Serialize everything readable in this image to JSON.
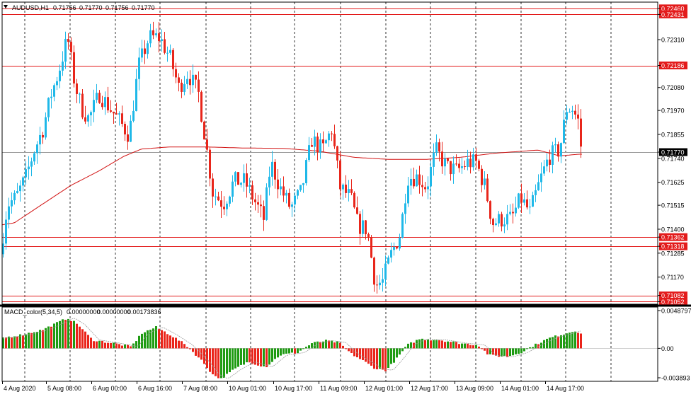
{
  "window": {
    "symbol_label": "AUDUSD,H1",
    "ohlc": [
      "0.71756",
      "0.71770",
      "0.71756",
      "0.71770"
    ]
  },
  "colors": {
    "bull": "#1fb8e8",
    "bear": "#e8261b",
    "ma": "#d21414",
    "level": "#e31b1b",
    "grid": "#000000",
    "macd_up": "#1e9b12",
    "macd_down": "#ea241a"
  },
  "chart_data": [
    {
      "type": "candlestick",
      "title": "AUDUSD,H1",
      "ylim": [
        0.7104,
        0.7249
      ],
      "y_ticks": [
        "0.72310",
        "0.72080",
        "0.71970",
        "0.71855",
        "0.71740",
        "0.71625",
        "0.71515",
        "0.71400",
        "0.71285",
        "0.71170"
      ],
      "x_ticks": [
        "4 Aug 2020",
        "5 Aug 08:00",
        "6 Aug 00:00",
        "6 Aug 16:00",
        "7 Aug 08:00",
        "10 Aug 01:00",
        "10 Aug 17:00",
        "11 Aug 09:00",
        "12 Aug 01:00",
        "12 Aug 17:00",
        "13 Aug 09:00",
        "14 Aug 01:00",
        "14 Aug 17:00"
      ],
      "horizontal_levels": [
        {
          "label": "0.72460",
          "value": 0.7246
        },
        {
          "label": "0.72431",
          "value": 0.72431
        },
        {
          "label": "0.72186",
          "value": 0.72186
        },
        {
          "label": "0.71362",
          "value": 0.71362
        },
        {
          "label": "0.71318",
          "value": 0.71318
        },
        {
          "label": "0.71082",
          "value": 0.71082
        },
        {
          "label": "0.71052",
          "value": 0.71052
        }
      ],
      "current_price": {
        "label": "0.71770",
        "value": 0.7177
      },
      "moving_average_anchors": [
        [
          0,
          0.7142
        ],
        [
          20,
          0.7143
        ],
        [
          60,
          0.7152
        ],
        [
          100,
          0.7161
        ],
        [
          140,
          0.7168
        ],
        [
          175,
          0.7175
        ],
        [
          200,
          0.71785
        ],
        [
          240,
          0.71795
        ],
        [
          290,
          0.71795
        ],
        [
          340,
          0.7179
        ],
        [
          400,
          0.71788
        ],
        [
          450,
          0.71775
        ],
        [
          500,
          0.71745
        ],
        [
          550,
          0.71735
        ],
        [
          600,
          0.71735
        ],
        [
          650,
          0.71745
        ],
        [
          700,
          0.71765
        ],
        [
          760,
          0.7178
        ],
        [
          790,
          0.71752
        ],
        [
          818,
          0.7176
        ]
      ],
      "price_anchors": [
        [
          0,
          0.7128
        ],
        [
          10,
          0.7152
        ],
        [
          22,
          0.7155
        ],
        [
          36,
          0.7165
        ],
        [
          48,
          0.7178
        ],
        [
          60,
          0.7188
        ],
        [
          72,
          0.7205
        ],
        [
          82,
          0.7215
        ],
        [
          95,
          0.7232
        ],
        [
          105,
          0.721
        ],
        [
          115,
          0.7198
        ],
        [
          125,
          0.7193
        ],
        [
          140,
          0.7205
        ],
        [
          155,
          0.7198
        ],
        [
          168,
          0.7192
        ],
        [
          182,
          0.7185
        ],
        [
          195,
          0.7218
        ],
        [
          210,
          0.7232
        ],
        [
          225,
          0.7232
        ],
        [
          240,
          0.7222
        ],
        [
          252,
          0.7208
        ],
        [
          265,
          0.7215
        ],
        [
          280,
          0.7205
        ],
        [
          290,
          0.7182
        ],
        [
          300,
          0.7158
        ],
        [
          315,
          0.7152
        ],
        [
          330,
          0.7163
        ],
        [
          345,
          0.7163
        ],
        [
          360,
          0.7153
        ],
        [
          372,
          0.7145
        ],
        [
          382,
          0.7172
        ],
        [
          395,
          0.716
        ],
        [
          410,
          0.715
        ],
        [
          425,
          0.7158
        ],
        [
          440,
          0.7183
        ],
        [
          455,
          0.7178
        ],
        [
          468,
          0.7188
        ],
        [
          480,
          0.716
        ],
        [
          495,
          0.7155
        ],
        [
          505,
          0.7142
        ],
        [
          518,
          0.714
        ],
        [
          530,
          0.7113
        ],
        [
          540,
          0.7115
        ],
        [
          552,
          0.7128
        ],
        [
          565,
          0.7138
        ],
        [
          575,
          0.7165
        ],
        [
          590,
          0.7165
        ],
        [
          602,
          0.716
        ],
        [
          615,
          0.7178
        ],
        [
          630,
          0.717
        ],
        [
          645,
          0.7168
        ],
        [
          660,
          0.7172
        ],
        [
          672,
          0.7172
        ],
        [
          685,
          0.716
        ],
        [
          695,
          0.7143
        ],
        [
          710,
          0.7145
        ],
        [
          722,
          0.7145
        ],
        [
          735,
          0.7155
        ],
        [
          748,
          0.7148
        ],
        [
          762,
          0.7163
        ],
        [
          775,
          0.7175
        ],
        [
          790,
          0.7178
        ],
        [
          800,
          0.7198
        ],
        [
          808,
          0.7198
        ],
        [
          816,
          0.7192
        ],
        [
          821,
          0.7177
        ]
      ]
    },
    {
      "type": "histogram",
      "title": "MACD_color(5,34,5)",
      "values_text": [
        "0.00000000",
        "0.00000000",
        "0.00173836"
      ],
      "ylim": [
        -0.003893,
        0.004879
      ],
      "y_ticks": [
        "0.0048797",
        "0.00",
        "-0.003893"
      ],
      "anchors": [
        [
          0,
          0.0012
        ],
        [
          30,
          0.0016
        ],
        [
          60,
          0.0022
        ],
        [
          95,
          0.0036
        ],
        [
          110,
          0.0028
        ],
        [
          130,
          0.001
        ],
        [
          160,
          0.0006
        ],
        [
          185,
          0.0002
        ],
        [
          200,
          0.0018
        ],
        [
          220,
          0.0025
        ],
        [
          240,
          0.0016
        ],
        [
          262,
          0.0004
        ],
        [
          285,
          -0.0015
        ],
        [
          300,
          -0.0031
        ],
        [
          312,
          -0.0036
        ],
        [
          330,
          -0.0025
        ],
        [
          350,
          -0.0016
        ],
        [
          375,
          -0.0022
        ],
        [
          395,
          -0.0008
        ],
        [
          420,
          -0.0005
        ],
        [
          440,
          0.0006
        ],
        [
          460,
          0.0009
        ],
        [
          478,
          0.0007
        ],
        [
          495,
          -0.0006
        ],
        [
          515,
          -0.0016
        ],
        [
          530,
          -0.0024
        ],
        [
          545,
          -0.0026
        ],
        [
          560,
          -0.0012
        ],
        [
          575,
          0.0004
        ],
        [
          592,
          0.0011
        ],
        [
          620,
          0.001
        ],
        [
          650,
          0.0006
        ],
        [
          675,
          0.0004
        ],
        [
          690,
          -0.0008
        ],
        [
          715,
          -0.001
        ],
        [
          735,
          -0.0005
        ],
        [
          755,
          0.0004
        ],
        [
          775,
          0.0012
        ],
        [
          800,
          0.0018
        ],
        [
          812,
          0.0021
        ],
        [
          821,
          0.0017
        ]
      ]
    }
  ]
}
